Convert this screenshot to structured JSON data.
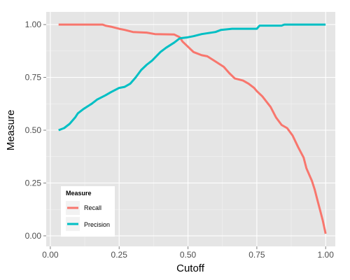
{
  "chart_data": {
    "type": "line",
    "title": "",
    "xlabel": "Cutoff",
    "ylabel": "Measure",
    "xlim": [
      -0.015,
      1.035
    ],
    "ylim": [
      -0.05,
      1.06
    ],
    "xticks": [
      0.0,
      0.25,
      0.5,
      0.75,
      1.0
    ],
    "xtick_labels": [
      "0.00",
      "0.25",
      "0.50",
      "0.75",
      "1.00"
    ],
    "yticks": [
      0.0,
      0.25,
      0.5,
      0.75,
      1.0
    ],
    "ytick_labels": [
      "0.00",
      "0.25",
      "0.50",
      "0.75",
      "1.00"
    ],
    "grid": true,
    "legend": {
      "title": "Measure",
      "placement": "bottom-left"
    },
    "colors": {
      "panel": "#e5e5e5",
      "grid_major": "#ffffff",
      "grid_minor": "#f2f2f2",
      "legend_key_bg": "#f2f2f2"
    },
    "series": [
      {
        "name": "Recall",
        "color": "#f8766d",
        "points": [
          [
            0.03,
            1.0
          ],
          [
            0.19,
            1.0
          ],
          [
            0.2,
            0.995
          ],
          [
            0.22,
            0.99
          ],
          [
            0.25,
            0.98
          ],
          [
            0.27,
            0.975
          ],
          [
            0.3,
            0.965
          ],
          [
            0.35,
            0.962
          ],
          [
            0.38,
            0.955
          ],
          [
            0.45,
            0.953
          ],
          [
            0.47,
            0.94
          ],
          [
            0.48,
            0.92
          ],
          [
            0.5,
            0.895
          ],
          [
            0.52,
            0.87
          ],
          [
            0.55,
            0.855
          ],
          [
            0.57,
            0.85
          ],
          [
            0.6,
            0.825
          ],
          [
            0.63,
            0.8
          ],
          [
            0.65,
            0.77
          ],
          [
            0.67,
            0.745
          ],
          [
            0.7,
            0.735
          ],
          [
            0.72,
            0.72
          ],
          [
            0.74,
            0.7
          ],
          [
            0.75,
            0.685
          ],
          [
            0.77,
            0.66
          ],
          [
            0.8,
            0.61
          ],
          [
            0.82,
            0.56
          ],
          [
            0.84,
            0.525
          ],
          [
            0.86,
            0.51
          ],
          [
            0.88,
            0.475
          ],
          [
            0.9,
            0.42
          ],
          [
            0.92,
            0.37
          ],
          [
            0.93,
            0.32
          ],
          [
            0.95,
            0.26
          ],
          [
            0.96,
            0.22
          ],
          [
            0.97,
            0.17
          ],
          [
            0.98,
            0.12
          ],
          [
            0.99,
            0.07
          ],
          [
            1.0,
            0.01
          ]
        ]
      },
      {
        "name": "Precision",
        "color": "#00bfc4",
        "points": [
          [
            0.03,
            0.5
          ],
          [
            0.05,
            0.51
          ],
          [
            0.07,
            0.53
          ],
          [
            0.09,
            0.56
          ],
          [
            0.1,
            0.58
          ],
          [
            0.12,
            0.6
          ],
          [
            0.15,
            0.625
          ],
          [
            0.17,
            0.645
          ],
          [
            0.2,
            0.665
          ],
          [
            0.22,
            0.68
          ],
          [
            0.25,
            0.7
          ],
          [
            0.27,
            0.705
          ],
          [
            0.29,
            0.72
          ],
          [
            0.31,
            0.75
          ],
          [
            0.33,
            0.785
          ],
          [
            0.35,
            0.81
          ],
          [
            0.37,
            0.83
          ],
          [
            0.4,
            0.87
          ],
          [
            0.42,
            0.89
          ],
          [
            0.45,
            0.915
          ],
          [
            0.47,
            0.935
          ],
          [
            0.5,
            0.94
          ],
          [
            0.52,
            0.945
          ],
          [
            0.55,
            0.955
          ],
          [
            0.6,
            0.965
          ],
          [
            0.62,
            0.975
          ],
          [
            0.66,
            0.98
          ],
          [
            0.75,
            0.98
          ],
          [
            0.76,
            0.995
          ],
          [
            0.84,
            0.995
          ],
          [
            0.85,
            1.0
          ],
          [
            1.0,
            1.0
          ]
        ]
      }
    ]
  }
}
